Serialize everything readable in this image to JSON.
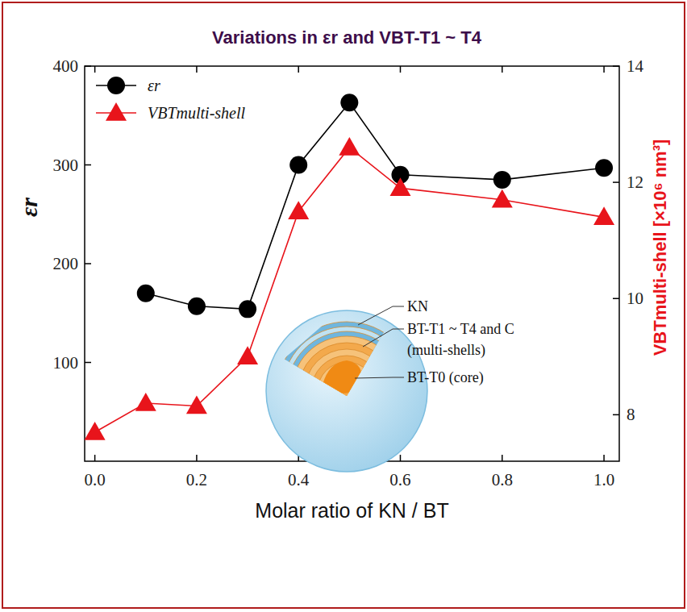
{
  "chart_data": {
    "type": "line",
    "title": "Variations in εr and VBT-T1 ~ T4",
    "x_label": "Molar ratio of KN / BT",
    "y_label": "εr",
    "y2_label": "VBTmulti-shell [×10⁶ nm³]",
    "x": [
      0,
      0.1,
      0.2,
      0.3,
      0.4,
      0.5,
      0.6,
      0.8,
      1.0
    ],
    "xlim": [
      -0.02,
      1.03
    ],
    "xticks": [
      {
        "value": 0,
        "label": "0.0"
      },
      {
        "value": 0.2,
        "label": "0.2"
      },
      {
        "value": 0.4,
        "label": "0.4"
      },
      {
        "value": 0.6,
        "label": "0.6"
      },
      {
        "value": 0.8,
        "label": "0.8"
      },
      {
        "value": 1.0,
        "label": "1.0"
      }
    ],
    "ylim": [
      0,
      400
    ],
    "yticks": [
      100,
      200,
      300,
      400
    ],
    "y2lim": [
      7.2,
      14
    ],
    "y2ticks": [
      8,
      10,
      12,
      14
    ],
    "grid": false,
    "legend": "upper-left",
    "series": [
      {
        "name": "εr",
        "color": "#000000",
        "marker": "circle",
        "line_style": "solid",
        "values": [
          null,
          170,
          157,
          154,
          300,
          363,
          290,
          285,
          297
        ]
      },
      {
        "name": "VBTmulti-shell",
        "color": "#e8141b",
        "marker": "triangle",
        "line_style": "solid",
        "axis": "y2",
        "values": [
          7.7,
          8.2,
          8.15,
          9.0,
          11.5,
          12.6,
          11.9,
          11.7,
          11.4
        ]
      }
    ],
    "annotations": [
      "KN",
      "BT-T1 ~ T4 and C",
      "(multi-shells)",
      "BT-T0 (core)"
    ]
  }
}
